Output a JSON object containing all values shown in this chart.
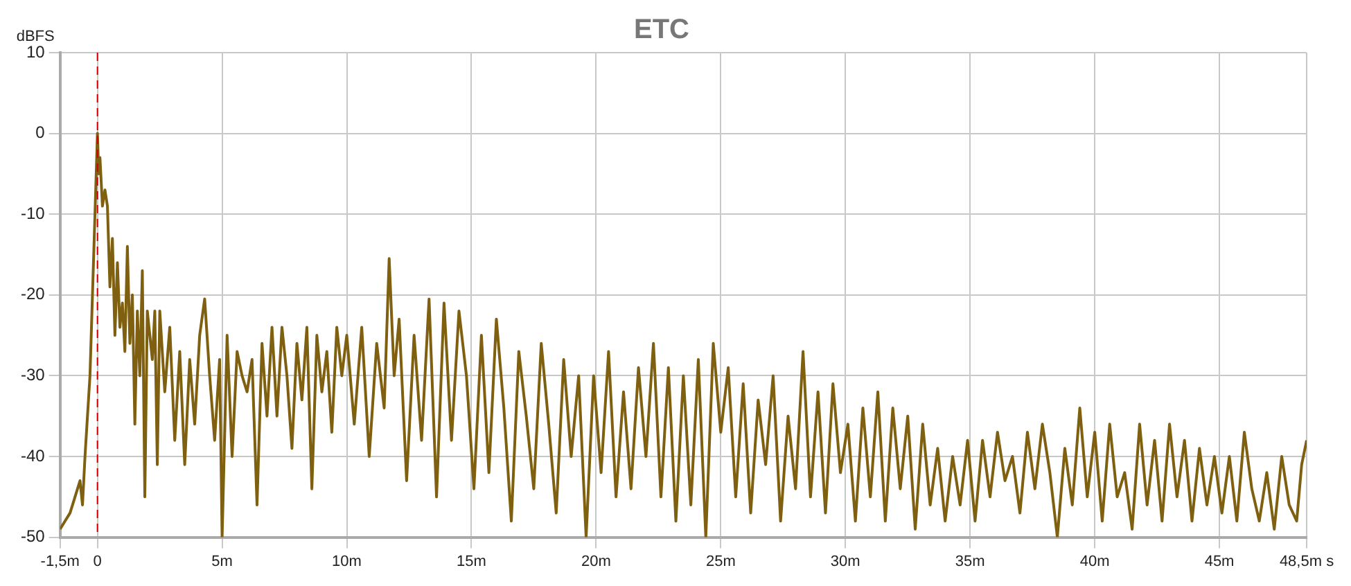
{
  "chart_data": {
    "type": "line",
    "title": "ETC",
    "ylabel": "dBFS",
    "x": [
      -1.5,
      -1.3,
      -1.1,
      -0.9,
      -0.7,
      -0.6,
      -0.5,
      -0.4,
      -0.3,
      -0.15,
      0,
      0.05,
      0.1,
      0.2,
      0.3,
      0.4,
      0.5,
      0.6,
      0.7,
      0.8,
      0.9,
      1.0,
      1.1,
      1.2,
      1.3,
      1.4,
      1.5,
      1.6,
      1.7,
      1.8,
      1.9,
      2.0,
      2.2,
      2.3,
      2.4,
      2.5,
      2.7,
      2.9,
      3.1,
      3.3,
      3.5,
      3.7,
      3.9,
      4.1,
      4.3,
      4.5,
      4.7,
      4.9,
      5.0,
      5.2,
      5.4,
      5.6,
      5.8,
      6.0,
      6.2,
      6.4,
      6.6,
      6.8,
      7.0,
      7.2,
      7.4,
      7.6,
      7.8,
      8.0,
      8.2,
      8.4,
      8.6,
      8.8,
      9.0,
      9.2,
      9.4,
      9.6,
      9.8,
      10.0,
      10.3,
      10.6,
      10.9,
      11.2,
      11.5,
      11.7,
      11.9,
      12.1,
      12.4,
      12.7,
      13.0,
      13.3,
      13.6,
      13.9,
      14.2,
      14.5,
      14.8,
      15.1,
      15.4,
      15.7,
      16.0,
      16.3,
      16.6,
      16.9,
      17.2,
      17.5,
      17.8,
      18.1,
      18.4,
      18.7,
      19.0,
      19.3,
      19.6,
      19.9,
      20.2,
      20.5,
      20.8,
      21.1,
      21.4,
      21.7,
      22.0,
      22.3,
      22.6,
      22.9,
      23.2,
      23.5,
      23.8,
      24.1,
      24.4,
      24.7,
      25.0,
      25.3,
      25.6,
      25.9,
      26.2,
      26.5,
      26.8,
      27.1,
      27.4,
      27.7,
      28.0,
      28.3,
      28.6,
      28.9,
      29.2,
      29.5,
      29.8,
      30.1,
      30.4,
      30.7,
      31.0,
      31.3,
      31.6,
      31.9,
      32.2,
      32.5,
      32.8,
      33.1,
      33.4,
      33.7,
      34.0,
      34.3,
      34.6,
      34.9,
      35.2,
      35.5,
      35.8,
      36.1,
      36.4,
      36.7,
      37.0,
      37.3,
      37.6,
      37.9,
      38.2,
      38.5,
      38.8,
      39.1,
      39.4,
      39.7,
      40.0,
      40.3,
      40.6,
      40.9,
      41.2,
      41.5,
      41.8,
      42.1,
      42.4,
      42.7,
      43.0,
      43.3,
      43.6,
      43.9,
      44.2,
      44.5,
      44.8,
      45.1,
      45.4,
      45.7,
      46.0,
      46.3,
      46.6,
      46.9,
      47.2,
      47.5,
      47.8,
      48.1,
      48.3,
      48.5
    ],
    "series": [
      {
        "color": "#7f6010",
        "values": [
          -49,
          -48,
          -47,
          -45,
          -43,
          -46,
          -40,
          -35,
          -30,
          -15,
          0,
          -5,
          -3,
          -9,
          -7,
          -9,
          -19,
          -13,
          -25,
          -16,
          -24,
          -21,
          -27,
          -14,
          -26,
          -20,
          -36,
          -22,
          -30,
          -17,
          -45,
          -22,
          -28,
          -22,
          -41,
          -22,
          -32,
          -24,
          -38,
          -27,
          -41,
          -28,
          -36,
          -25,
          -20.5,
          -30,
          -38,
          -28,
          -50,
          -25,
          -40,
          -27,
          -30,
          -32,
          -28,
          -46,
          -26,
          -35,
          -24,
          -35,
          -24,
          -30,
          -39,
          -26,
          -33,
          -24,
          -44,
          -25,
          -32,
          -27,
          -37,
          -24,
          -30,
          -25,
          -36,
          -24,
          -40,
          -26,
          -34,
          -15.5,
          -30,
          -23,
          -43,
          -25,
          -38,
          -20.5,
          -45,
          -21,
          -38,
          -22,
          -30,
          -44,
          -25,
          -42,
          -23,
          -34,
          -48,
          -27,
          -35,
          -44,
          -26,
          -36,
          -47,
          -28,
          -40,
          -30,
          -50,
          -30,
          -42,
          -27,
          -45,
          -32,
          -44,
          -29,
          -40,
          -26,
          -45,
          -29,
          -48,
          -30,
          -46,
          -28,
          -50,
          -26,
          -37,
          -29,
          -45,
          -31,
          -47,
          -33,
          -41,
          -30,
          -48,
          -35,
          -44,
          -27,
          -45,
          -32,
          -47,
          -31,
          -42,
          -36,
          -48,
          -34,
          -45,
          -32,
          -48,
          -34,
          -44,
          -35,
          -49,
          -36,
          -46,
          -39,
          -48,
          -40,
          -46,
          -38,
          -48,
          -38,
          -45,
          -37,
          -43,
          -40,
          -47,
          -37,
          -44,
          -36,
          -42,
          -50,
          -39,
          -46,
          -34,
          -45,
          -37,
          -48,
          -36,
          -45,
          -42,
          -49,
          -36,
          -46,
          -38,
          -48,
          -36,
          -45,
          -38,
          -48,
          -39,
          -46,
          -40,
          -47,
          -40,
          -48,
          -37,
          -44,
          -48,
          -42,
          -49,
          -40,
          -46,
          -48,
          -41,
          -38
        ]
      }
    ],
    "xlim": [
      -1.5,
      48.5
    ],
    "xticks": [
      {
        "value": -1.5,
        "label": "-1,5m"
      },
      0,
      {
        "value": 5,
        "label": "5m"
      },
      {
        "value": 10,
        "label": "10m"
      },
      {
        "value": 15,
        "label": "15m"
      },
      {
        "value": 20,
        "label": "20m"
      },
      {
        "value": 25,
        "label": "25m"
      },
      {
        "value": 30,
        "label": "30m"
      },
      {
        "value": 35,
        "label": "35m"
      },
      {
        "value": 40,
        "label": "40m"
      },
      {
        "value": 45,
        "label": "45m"
      },
      {
        "value": 48.5,
        "label": "48,5m s"
      }
    ],
    "ylim": [
      -50,
      10
    ],
    "yticks": [
      -50,
      -40,
      -30,
      -20,
      -10,
      0,
      10
    ],
    "grid": true,
    "legend": false,
    "marker": "none",
    "line_style": "solid",
    "ref_lines": [
      {
        "axis": "x",
        "value": 0,
        "color": "#cc0000",
        "line_style": "dashed"
      }
    ]
  }
}
